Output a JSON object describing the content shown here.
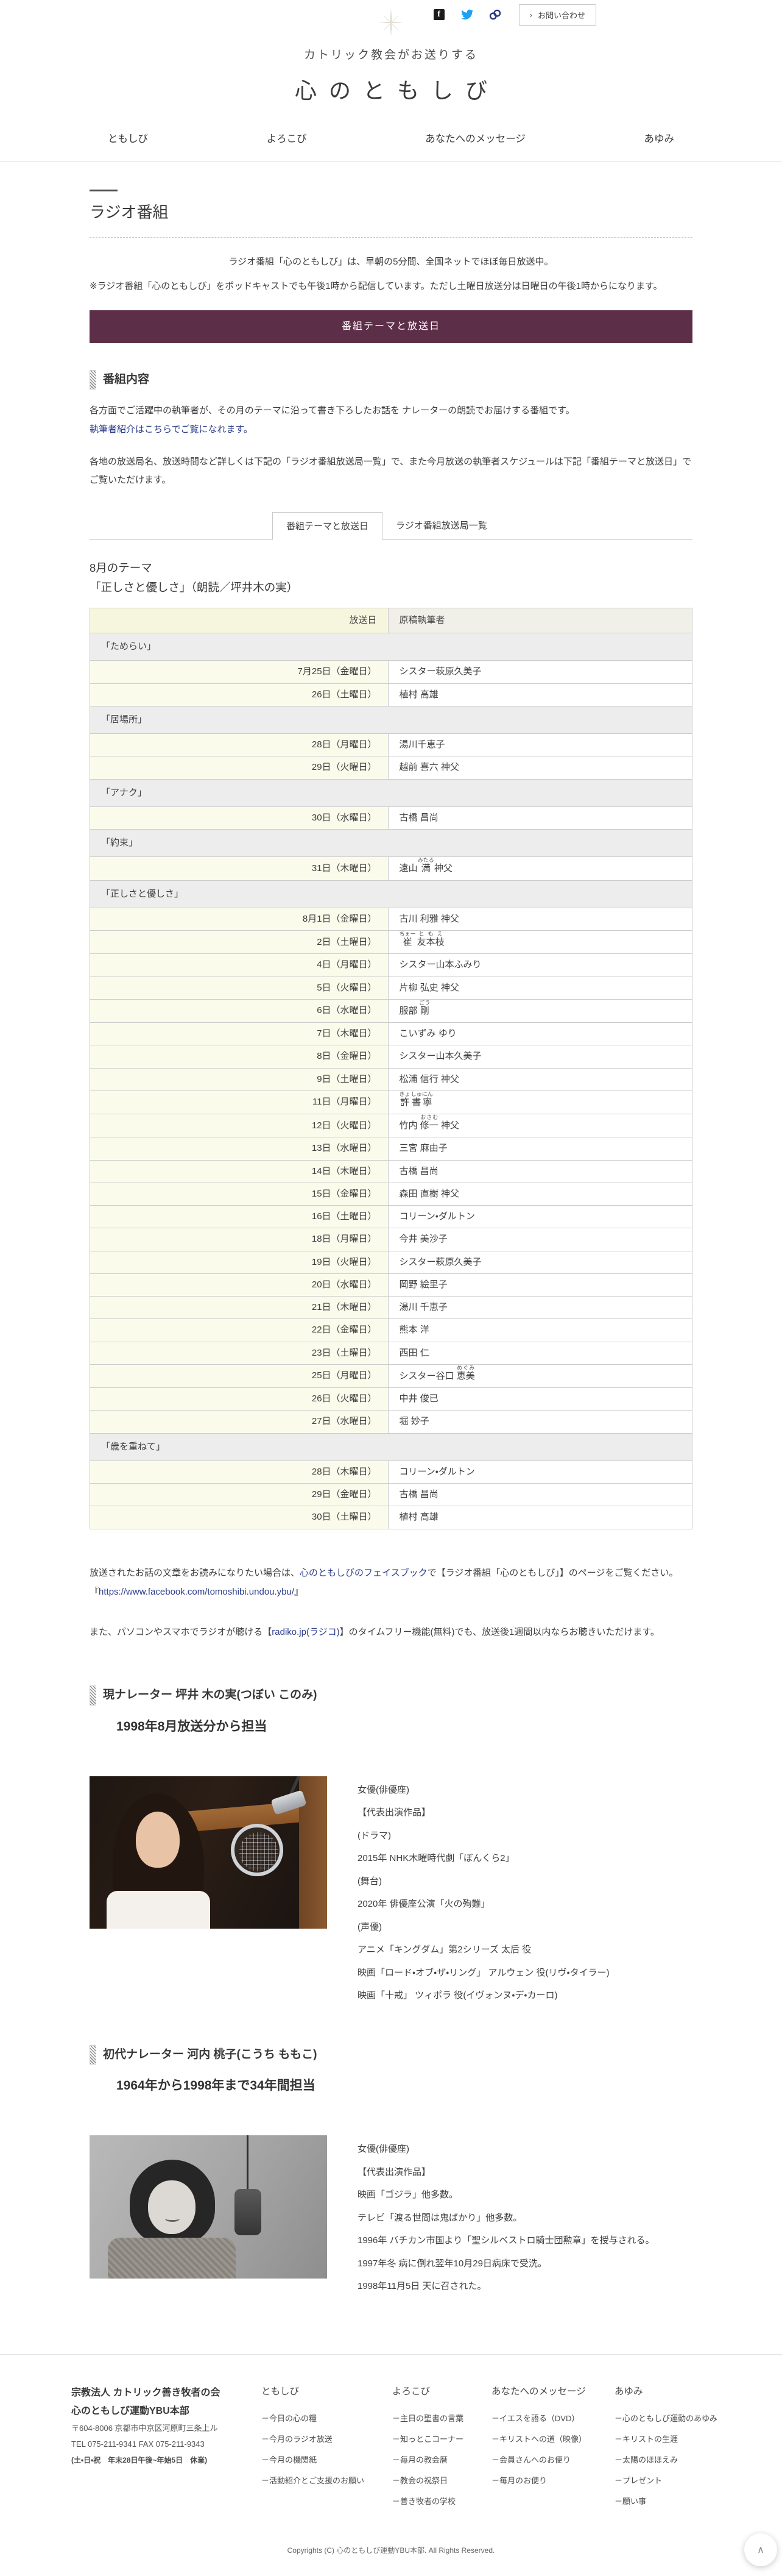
{
  "topbar": {
    "contact_label": "お問い合わせ",
    "chevron": "›"
  },
  "header": {
    "tagline": "カトリック教会がお送りする",
    "site_title": "心のともしび",
    "nav": [
      "ともしび",
      "よろこび",
      "あなたへのメッセージ",
      "あゆみ"
    ],
    "social_icons": [
      "facebook-icon",
      "twitter-icon",
      "link-icon"
    ]
  },
  "page": {
    "title": "ラジオ番組",
    "intro_center": "ラジオ番組「心のともしび」は、早朝の5分間、全国ネットでほぼ毎日放送中。",
    "intro_note": "※ラジオ番組「心のともしび」をポッドキャストでも午後1時から配信しています。ただし土曜日放送分は日曜日の午後1時からになります。",
    "banner_label": "番組テーマと放送日"
  },
  "program": {
    "heading": "番組内容",
    "desc1": "各方面でご活躍中の執筆者が、その月のテーマに沿って書き下ろしたお話を ナレーターの朗読でお届けする番組です。",
    "writers_line": "執筆者紹介はこちらでご覧になれます。",
    "desc2": "各地の放送局名、放送時間など詳しくは下記の「ラジオ番組放送局一覧」で、また今月放送の執筆者スケジュールは下記「番組テーマと放送日」で ご覧いただけます。"
  },
  "tabs": [
    {
      "label": "番組テーマと放送日",
      "active": true
    },
    {
      "label": "ラジオ番組放送局一覧",
      "active": false
    }
  ],
  "theme": {
    "month_line": "8月のテーマ",
    "title_line": "「正しさと優しさ」（朗読／坪井木の実）"
  },
  "schedule": {
    "columns": [
      "放送日",
      "原稿執筆者"
    ],
    "groups": [
      {
        "title": "「ためらい」",
        "rows": [
          {
            "date": "7月25日（金曜日）",
            "name": "シスター萩原久美子"
          },
          {
            "date": "26日（土曜日）",
            "name": "植村 高雄"
          }
        ]
      },
      {
        "title": "「居場所」",
        "rows": [
          {
            "date": "28日（月曜日）",
            "name": "湯川千恵子"
          },
          {
            "date": "29日（火曜日）",
            "name": "越前 喜六 神父"
          }
        ]
      },
      {
        "title": "「アナク」",
        "rows": [
          {
            "date": "30日（水曜日）",
            "name": "古橋 昌尚"
          }
        ]
      },
      {
        "title": "「約束」",
        "rows": [
          {
            "date": "31日（木曜日）",
            "name": [
              [
                "遠山 ",
                null
              ],
              [
                "満",
                "みたる"
              ],
              [
                " 神父",
                null
              ]
            ]
          }
        ]
      },
      {
        "title": "「正しさと優しさ」",
        "rows": [
          {
            "date": "8月1日（金曜日）",
            "name": "古川 利雅 神父"
          },
          {
            "date": "2日（土曜日）",
            "name": [
              [
                "崔",
                "ちぇー"
              ],
              [
                " ",
                null
              ],
              [
                "友本枝",
                "ともえ"
              ]
            ]
          },
          {
            "date": "4日（月曜日）",
            "name": "シスター山本ふみり"
          },
          {
            "date": "5日（火曜日）",
            "name": "片柳 弘史 神父"
          },
          {
            "date": "6日（水曜日）",
            "name": [
              [
                "服部 ",
                null
              ],
              [
                "剛",
                "ごう"
              ]
            ]
          },
          {
            "date": "7日（木曜日）",
            "name": "こいずみ ゆり"
          },
          {
            "date": "8日（金曜日）",
            "name": "シスター山本久美子"
          },
          {
            "date": "9日（土曜日）",
            "name": "松浦 信行 神父"
          },
          {
            "date": "11日（月曜日）",
            "name": [
              [
                "許",
                "きょ"
              ],
              [
                " ",
                null
              ],
              [
                "書寧",
                "しゅにん"
              ]
            ]
          },
          {
            "date": "12日（火曜日）",
            "name": [
              [
                "竹内 ",
                null
              ],
              [
                "修一",
                "おさむ"
              ],
              [
                " 神父",
                null
              ]
            ]
          },
          {
            "date": "13日（水曜日）",
            "name": "三宮 麻由子"
          },
          {
            "date": "14日（木曜日）",
            "name": "古橋 昌尚"
          },
          {
            "date": "15日（金曜日）",
            "name": "森田 直樹 神父"
          },
          {
            "date": "16日（土曜日）",
            "name": "コリーン・ダルトン"
          },
          {
            "date": "18日（月曜日）",
            "name": "今井 美沙子"
          },
          {
            "date": "19日（火曜日）",
            "name": "シスター萩原久美子"
          },
          {
            "date": "20日（水曜日）",
            "name": "岡野 絵里子"
          },
          {
            "date": "21日（木曜日）",
            "name": "湯川 千恵子"
          },
          {
            "date": "22日（金曜日）",
            "name": "熊本 洋"
          },
          {
            "date": "23日（土曜日）",
            "name": "西田 仁"
          },
          {
            "date": "25日（月曜日）",
            "name": [
              [
                "シスター谷口 ",
                null
              ],
              [
                "恵美",
                "めぐみ"
              ]
            ]
          },
          {
            "date": "26日（火曜日）",
            "name": "中井 俊已"
          },
          {
            "date": "27日（水曜日）",
            "name": "堀 妙子"
          }
        ]
      },
      {
        "title": "「歳を重ねて」",
        "rows": [
          {
            "date": "28日（木曜日）",
            "name": "コリーン・ダルトン"
          },
          {
            "date": "29日（金曜日）",
            "name": "古橋 昌尚"
          },
          {
            "date": "30日（土曜日）",
            "name": "植村 高雄"
          }
        ]
      }
    ]
  },
  "after_table": {
    "p1_pre": "放送されたお話の文章をお読みになりたい場合は、",
    "p1_link": "心のともしびのフェイスブック",
    "p1_post": "で【ラジオ番組「心のともしび」】のページをご覧ください。",
    "url_open": "『",
    "url": "https://www.facebook.com/tomoshibi.undou.ybu/",
    "url_close": "』",
    "p2_pre": "また、パソコンやスマホでラジオが聴ける【",
    "p2_link": "radiko.jp(ラジコ)",
    "p2_post": "】のタイムフリー機能(無料)でも、放送後1週間以内ならお聴きいただけます。"
  },
  "narrators": [
    {
      "heading": "現ナレーター 坪井 木の実(つぼい このみ)",
      "tenure": "1998年8月放送分から担当",
      "photo": "color-photo-woman-at-microphone",
      "profile": [
        "女優(俳優座)",
        "【代表出演作品】",
        "(ドラマ)",
        "2015年 NHK木曜時代劇「ぼんくら2」",
        "(舞台)",
        "2020年 俳優座公演「火の殉難」",
        "(声優)",
        "アニメ「キングダム」第2シリーズ 太后 役",
        "映画「ロード・オブ・ザ・リング」 アルウェン 役(リヴ・タイラー)",
        "映画「十戒」 ツィポラ 役(イヴォンヌ・デ・カーロ)"
      ]
    },
    {
      "heading": "初代ナレーター 河内 桃子(こうち ももこ)",
      "tenure": "1964年から1998年まで34年間担当",
      "photo": "bw-photo-woman-at-microphone",
      "profile": [
        "女優(俳優座)",
        "【代表出演作品】",
        "映画「ゴジラ」他多数。",
        "テレビ「渡る世間は鬼ばかり」他多数。",
        "1996年 バチカン市国より「聖シルベストロ騎士団勲章」を授与される。",
        "1997年冬 病に倒れ翌年10月29日病床で受洗。",
        "1998年11月5日 天に召された。"
      ]
    }
  ],
  "footer": {
    "org_line1": "宗教法人 カトリック善き牧者の会",
    "org_line2": "心のともしび運動YBU本部",
    "address": "〒604-8006 京都市中京区河原町三条上ル",
    "tel_fax": "TEL 075-211-9341 FAX 075-211-9343",
    "hours": "(土・日・祝　年末28日午後~年始5日　休業)",
    "link_prefix": "－",
    "columns": [
      {
        "title": "ともしび",
        "links": [
          "今日の心の糧",
          "今月のラジオ放送",
          "今月の機関紙",
          "活動紹介とご支援のお願い"
        ]
      },
      {
        "title": "よろこび",
        "links": [
          "主日の聖書の言葉",
          "知っとこコーナー",
          "毎月の教会暦",
          "教会の祝祭日",
          "善き牧者の学校"
        ]
      },
      {
        "title": "あなたへのメッセージ",
        "links": [
          "イエスを語る（DVD）",
          "キリストへの道（映像）",
          "会員さんへのお便り",
          "毎月のお便り"
        ]
      },
      {
        "title": "あゆみ",
        "links": [
          "心のともしび運動のあゆみ",
          "キリストの生涯",
          "太陽のほほえみ",
          "プレゼント",
          "願い事"
        ]
      }
    ],
    "copyright": "Copyrights (C) 心のともしび運動YBU本部. All Rights Reserved.",
    "scroll_top_glyph": "∧"
  },
  "colors": {
    "banner": "#5d2e47",
    "link": "#2c3e8c",
    "twitter_blue": "#1da1f2",
    "facebook_black": "#1b1b1b",
    "link_icon_navy": "#283583",
    "table_date_yellow": "#fbfbec",
    "table_header_yellow": "#f6f6df",
    "table_section_gray": "#ededed"
  }
}
